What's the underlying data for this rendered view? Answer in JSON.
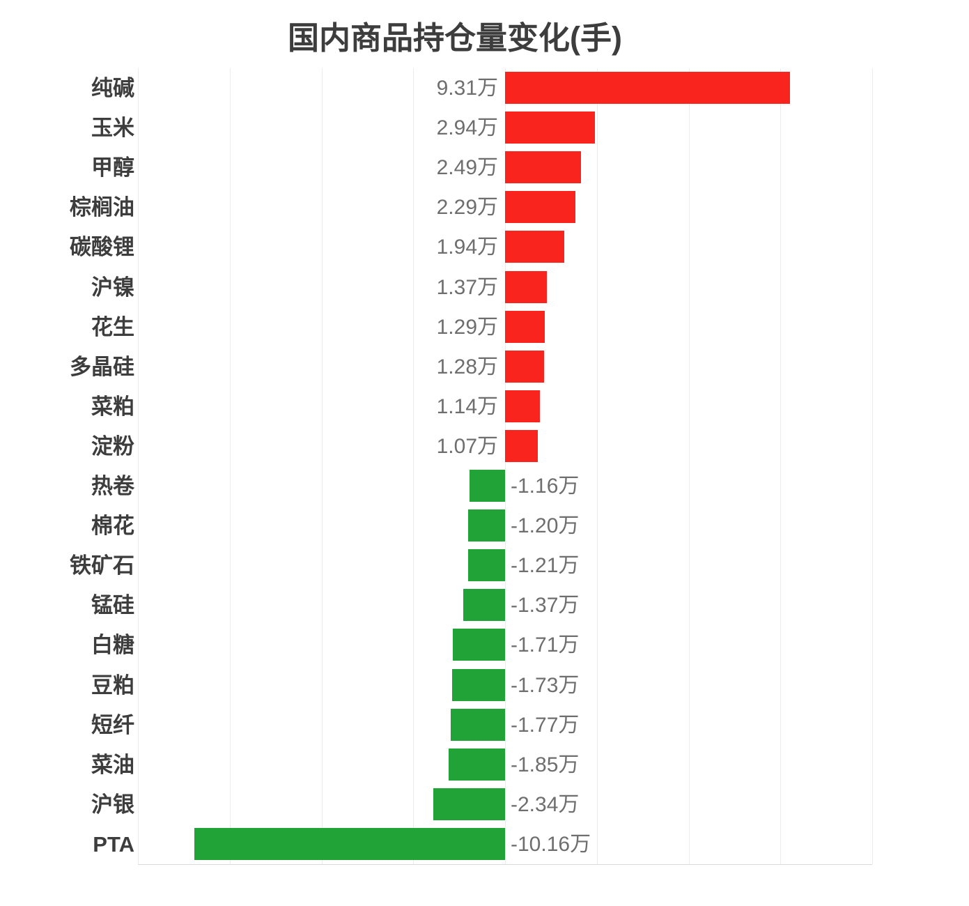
{
  "title": "国内商品持仓量变化(手)",
  "colors": {
    "background": "#ffffff",
    "title": "#3d3d3d",
    "category_label": "#3d3d3d",
    "value_label": "#6e6e6e",
    "gridline": "#ececec",
    "axis_line": "#d9d9d9",
    "positive_bar": "#f8241d",
    "negative_bar": "#21a338"
  },
  "chart_data": {
    "type": "bar",
    "orientation": "horizontal",
    "title": "国内商品持仓量变化(手)",
    "unit": "手",
    "categories": [
      "纯碱",
      "玉米",
      "甲醇",
      "棕榈油",
      "碳酸锂",
      "沪镍",
      "花生",
      "多晶硅",
      "菜粕",
      "淀粉",
      "热卷",
      "棉花",
      "铁矿石",
      "锰硅",
      "白糖",
      "豆粕",
      "短纤",
      "菜油",
      "沪银",
      "PTA"
    ],
    "values": [
      93100,
      29400,
      24900,
      22900,
      19400,
      13700,
      12900,
      12800,
      11400,
      10700,
      -11600,
      -12000,
      -12100,
      -13700,
      -17100,
      -17300,
      -17700,
      -18500,
      -23400,
      -101600
    ],
    "value_labels": [
      "9.31万",
      "2.94万",
      "2.49万",
      "2.29万",
      "1.94万",
      "1.37万",
      "1.29万",
      "1.28万",
      "1.14万",
      "1.07万",
      "-1.16万",
      "-1.20万",
      "-1.21万",
      "-1.37万",
      "-1.71万",
      "-1.73万",
      "-1.77万",
      "-1.85万",
      "-2.34万",
      "-10.16万"
    ],
    "xlim": [
      -120000,
      120000
    ],
    "grid_step": 30000,
    "grid": true,
    "legend": "none",
    "value_label_position": "inside-of-zero-line",
    "positive_color": "#f8241d",
    "negative_color": "#21a338"
  }
}
